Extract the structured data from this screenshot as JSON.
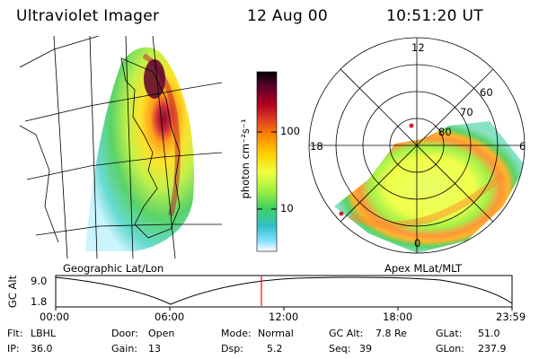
{
  "header": {
    "instrument": "Ultraviolet Imager",
    "date": "12 Aug 00",
    "time": "10:51:20 UT"
  },
  "geo_map": {
    "caption": "Geographic Lat/Lon"
  },
  "colorbar": {
    "unit_label": "photon cm⁻²s⁻¹",
    "tick_100": "100",
    "tick_10": "10",
    "colors": [
      "#000000",
      "#5a0030",
      "#b00020",
      "#e04020",
      "#ff8a00",
      "#ffd000",
      "#f0ff40",
      "#a0f040",
      "#40d060",
      "#30c0c8",
      "#80e0ff",
      "#ffffff"
    ]
  },
  "polar_plot": {
    "caption": "Apex MLat/MLT",
    "mlt_top": "12",
    "mlt_left": "18",
    "mlt_right": "6",
    "mlt_bottom": "0",
    "lat_60": "60",
    "lat_70": "70",
    "lat_80": "80"
  },
  "altitude_plot": {
    "ylabel": "GC Alt",
    "ytick_high": "9.0",
    "ytick_low": "1.8",
    "xticks": [
      "00:00",
      "06:00",
      "12:00",
      "18:00",
      "23:59"
    ],
    "marker_color": "#ff0000"
  },
  "status": {
    "flt_label": "Flt:",
    "flt_value": "LBHL",
    "ip_label": "IP:",
    "ip_value": "36.0",
    "door_label": "Door:",
    "door_value": "Open",
    "gain_label": "Gain:",
    "gain_value": "13",
    "mode_label": "Mode:",
    "mode_value": "Normal",
    "dsp_label": "Dsp:",
    "dsp_value": "5.2",
    "gcalt_label": "GC Alt:",
    "gcalt_value": "7.8 Re",
    "seq_label": "Seq:",
    "seq_value": "39",
    "glat_label": "GLat:",
    "glat_value": "51.0",
    "glon_label": "GLon:",
    "glon_value": "237.9"
  }
}
